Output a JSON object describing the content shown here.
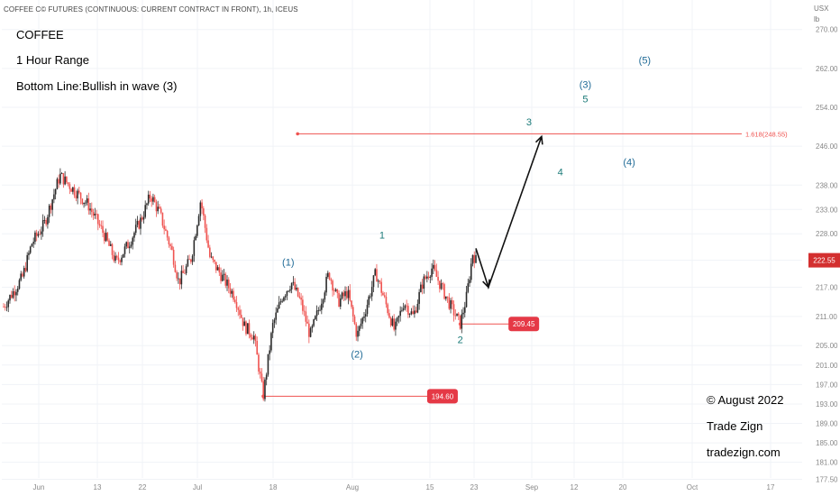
{
  "header": {
    "symbol_line": "COFFEE C© FUTURES (CONTINUOUS: CURRENT CONTRACT IN FRONT), 1h, ICEUS",
    "currency": "USX",
    "unit": "lb"
  },
  "annotations": {
    "title": "COFFEE",
    "range": "1 Hour Range",
    "bottom_line": "Bottom Line:Bullish in wave (3)",
    "copyright": "© August 2022",
    "brand": "Trade Zign",
    "website": "tradezign.com"
  },
  "colors": {
    "up": "#26a69a",
    "down": "#ef5350",
    "candle": "#2b2b2b",
    "level_line": "#ef5350",
    "wave_label": "#1f6a96",
    "price_badge": "#e53946"
  },
  "chart_data": {
    "type": "candlestick",
    "x_ticks": [
      "Jun",
      "13",
      "22",
      "Jul",
      "18",
      "Aug",
      "15",
      "23",
      "Sep",
      "12",
      "20",
      "Oct",
      "17"
    ],
    "y_ticks": [
      "270.00",
      "262.00",
      "254.00",
      "246.00",
      "238.00",
      "233.00",
      "228.00",
      "222.55",
      "217.00",
      "211.00",
      "205.00",
      "201.00",
      "197.00",
      "193.00",
      "189.00",
      "185.00",
      "181.00",
      "177.50"
    ],
    "y_range": [
      175,
      277
    ],
    "price_path": [
      {
        "t": 0,
        "p": 213
      },
      {
        "t": 6,
        "p": 219
      },
      {
        "t": 9,
        "p": 226
      },
      {
        "t": 13,
        "p": 230
      },
      {
        "t": 18,
        "p": 240
      },
      {
        "t": 21,
        "p": 238
      },
      {
        "t": 24,
        "p": 236
      },
      {
        "t": 27,
        "p": 234
      },
      {
        "t": 32,
        "p": 228
      },
      {
        "t": 36,
        "p": 222
      },
      {
        "t": 40,
        "p": 226
      },
      {
        "t": 44,
        "p": 231
      },
      {
        "t": 47,
        "p": 236
      },
      {
        "t": 50,
        "p": 232
      },
      {
        "t": 54,
        "p": 224
      },
      {
        "t": 56,
        "p": 218
      },
      {
        "t": 60,
        "p": 223
      },
      {
        "t": 63,
        "p": 235
      },
      {
        "t": 66,
        "p": 223
      },
      {
        "t": 70,
        "p": 219
      },
      {
        "t": 74,
        "p": 215
      },
      {
        "t": 77,
        "p": 209
      },
      {
        "t": 80,
        "p": 207
      },
      {
        "t": 83,
        "p": 194.6
      },
      {
        "t": 86,
        "p": 209
      },
      {
        "t": 89,
        "p": 215
      },
      {
        "t": 92,
        "p": 218
      },
      {
        "t": 95,
        "p": 214
      },
      {
        "t": 98,
        "p": 207
      },
      {
        "t": 101,
        "p": 213
      },
      {
        "t": 104,
        "p": 220
      },
      {
        "t": 107,
        "p": 214
      },
      {
        "t": 110,
        "p": 216
      },
      {
        "t": 113,
        "p": 207
      },
      {
        "t": 116,
        "p": 213
      },
      {
        "t": 119,
        "p": 220
      },
      {
        "t": 122,
        "p": 214
      },
      {
        "t": 125,
        "p": 208
      },
      {
        "t": 128,
        "p": 214
      },
      {
        "t": 131,
        "p": 211
      },
      {
        "t": 134,
        "p": 218
      },
      {
        "t": 137,
        "p": 221
      },
      {
        "t": 140,
        "p": 217
      },
      {
        "t": 143,
        "p": 213
      },
      {
        "t": 146,
        "p": 209.45
      },
      {
        "t": 148,
        "p": 215
      },
      {
        "t": 150,
        "p": 224
      },
      {
        "t": 151,
        "p": 222.55
      }
    ],
    "levels": [
      {
        "label": "194.60",
        "price": 194.6,
        "from_t": 83,
        "to_t": 136
      },
      {
        "label": "209.45",
        "price": 209.45,
        "from_t": 146,
        "to_t": 162
      },
      {
        "label": "1.618(248.55)",
        "price": 248.55,
        "from_t": 94,
        "to_t": 236
      }
    ],
    "last_price": {
      "label": "222.55",
      "price": 222.55
    },
    "wave_labels": [
      {
        "text": "(1)",
        "t": 91,
        "p": 221.5
      },
      {
        "text": "1",
        "t": 121,
        "p": 227.0
      },
      {
        "text": "(2)",
        "t": 113,
        "p": 202.5
      },
      {
        "text": "2",
        "t": 146,
        "p": 205.5
      },
      {
        "text": "3",
        "t": 168,
        "p": 250.3
      },
      {
        "text": "4",
        "t": 178,
        "p": 240.0
      },
      {
        "text": "5",
        "t": 186,
        "p": 255.0
      },
      {
        "text": "(3)",
        "t": 186,
        "p": 258.0
      },
      {
        "text": "(4)",
        "t": 200,
        "p": 242.0
      },
      {
        "text": "(5)",
        "t": 205,
        "p": 263.0
      }
    ],
    "projection": [
      {
        "t": 151,
        "p": 225
      },
      {
        "t": 155,
        "p": 217
      },
      {
        "t": 172,
        "p": 248
      }
    ]
  }
}
